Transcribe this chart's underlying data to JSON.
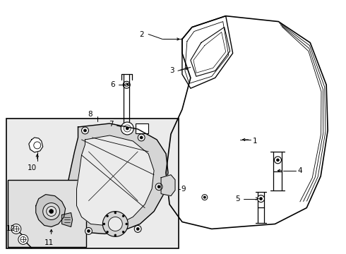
{
  "background_color": "#ffffff",
  "line_color": "#000000",
  "figsize": [
    4.9,
    3.6
  ],
  "dpi": 100,
  "box_bg": "#ebebeb",
  "inner_box_bg": "#e0e0e0"
}
